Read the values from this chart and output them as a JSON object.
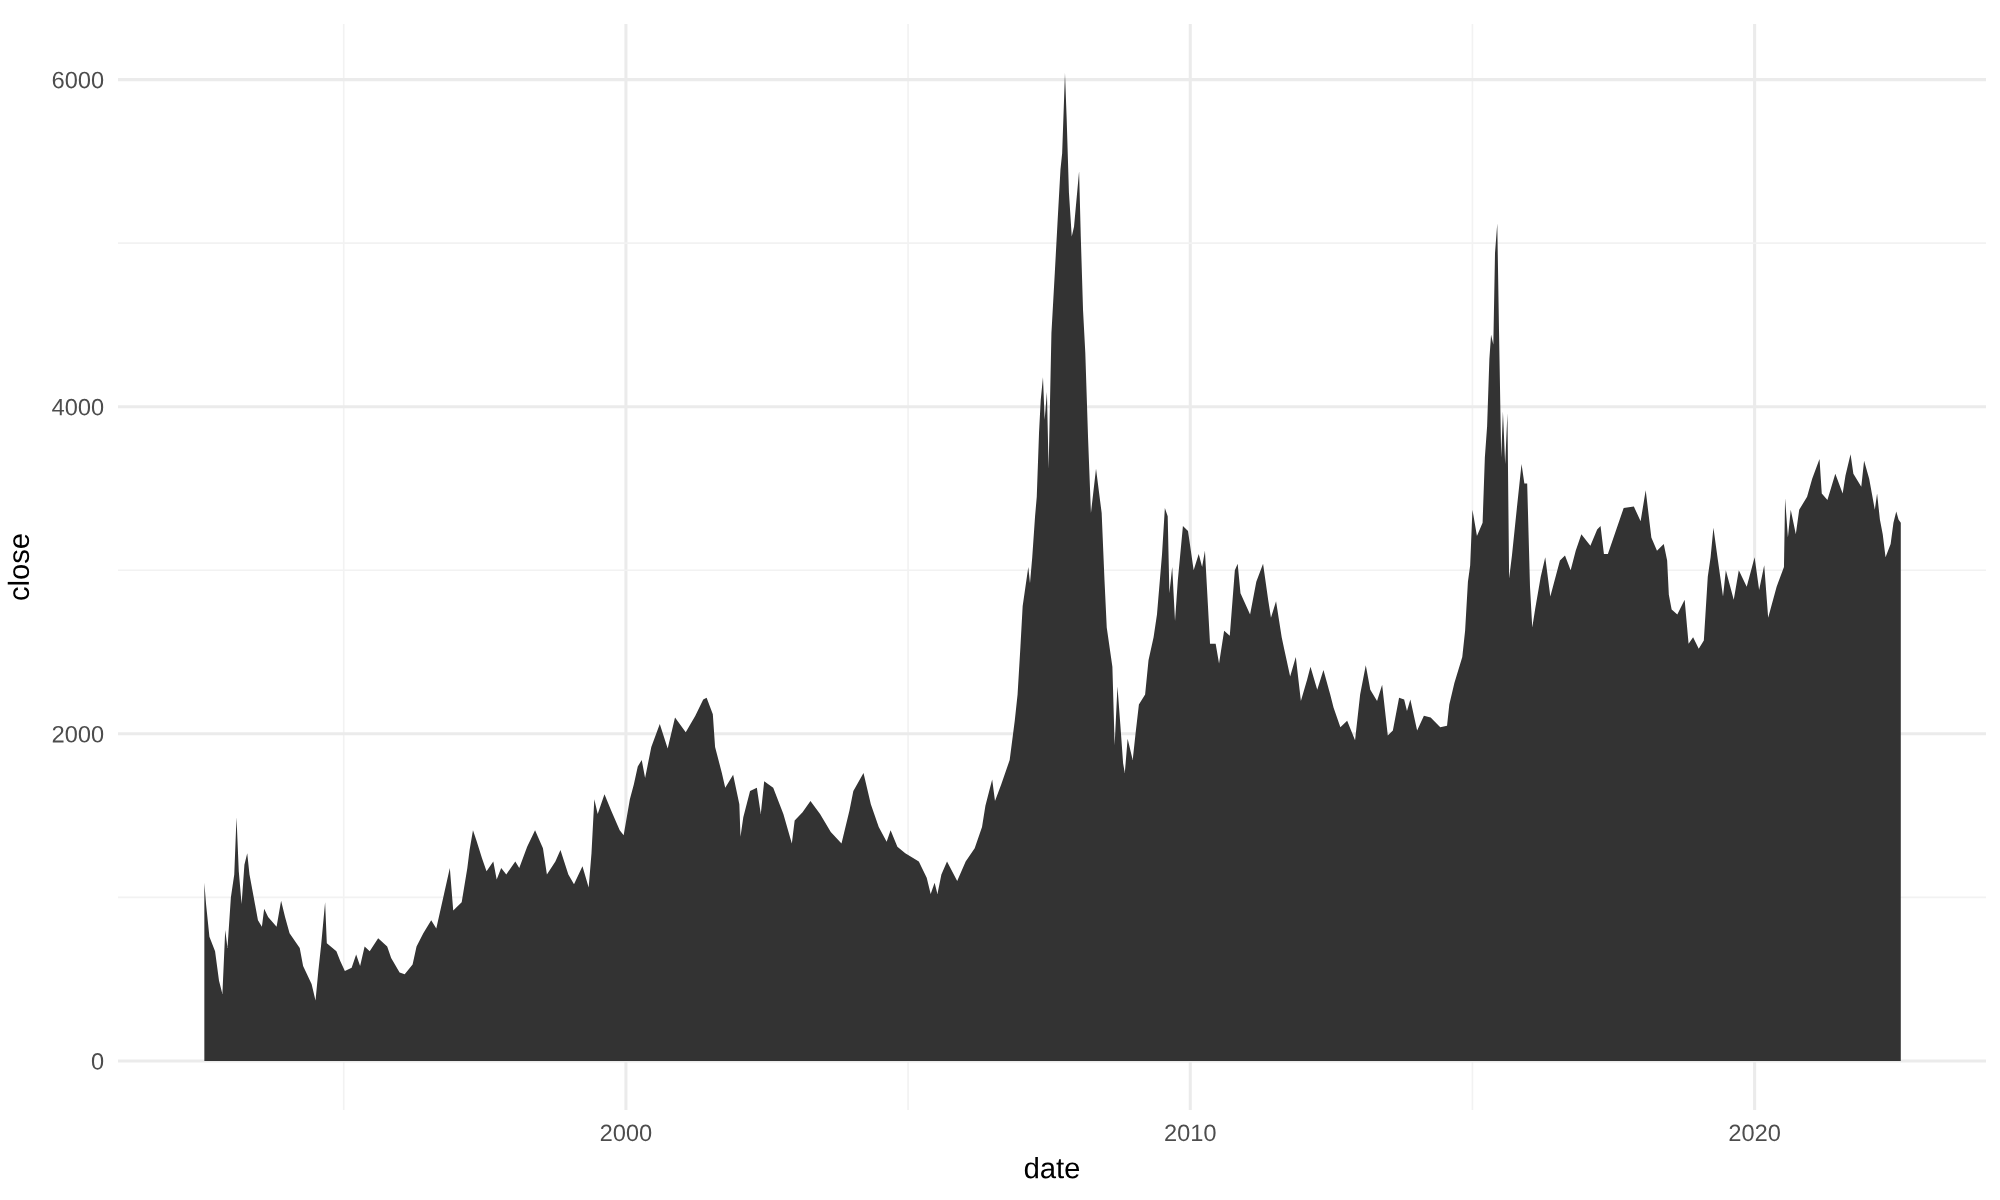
{
  "chart_data": {
    "type": "area",
    "xlabel": "date",
    "ylabel": "close",
    "color": "#333333",
    "x": [
      1992.53,
      1992.56,
      1992.62,
      1992.72,
      1992.79,
      1992.85,
      1992.9,
      1992.94,
      1993.0,
      1993.06,
      1993.1,
      1993.14,
      1993.19,
      1993.24,
      1993.29,
      1993.33,
      1993.4,
      1993.48,
      1993.55,
      1993.59,
      1993.66,
      1993.81,
      1993.89,
      1993.96,
      1994.04,
      1994.22,
      1994.28,
      1994.43,
      1994.5,
      1994.55,
      1994.6,
      1994.67,
      1994.7,
      1994.87,
      1994.94,
      1995.02,
      1995.14,
      1995.22,
      1995.29,
      1995.37,
      1995.46,
      1995.61,
      1995.77,
      1995.84,
      1995.99,
      1996.08,
      1996.22,
      1996.29,
      1996.41,
      1996.55,
      1996.64,
      1996.77,
      1996.88,
      1996.94,
      1997.09,
      1997.19,
      1997.23,
      1997.29,
      1997.35,
      1997.45,
      1997.53,
      1997.65,
      1997.71,
      1997.79,
      1997.88,
      1998.04,
      1998.11,
      1998.25,
      1998.39,
      1998.53,
      1998.6,
      1998.75,
      1998.84,
      1998.98,
      1999.08,
      1999.23,
      1999.34,
      1999.39,
      1999.44,
      1999.5,
      1999.62,
      1999.74,
      1999.89,
      1999.96,
      2000.07,
      2000.14,
      2000.21,
      2000.28,
      2000.34,
      2000.45,
      2000.6,
      2000.74,
      2000.87,
      2001.06,
      2001.23,
      2001.37,
      2001.43,
      2001.54,
      2001.58,
      2001.7,
      2001.76,
      2001.9,
      2002.01,
      2002.03,
      2002.08,
      2002.2,
      2002.32,
      2002.39,
      2002.45,
      2002.61,
      2002.79,
      2002.94,
      2002.99,
      2003.13,
      2003.27,
      2003.44,
      2003.63,
      2003.82,
      2003.96,
      2004.03,
      2004.21,
      2004.34,
      2004.48,
      2004.62,
      2004.69,
      2004.81,
      2004.95,
      2005.19,
      2005.33,
      2005.4,
      2005.47,
      2005.52,
      2005.59,
      2005.69,
      2005.87,
      2006.02,
      2006.18,
      2006.31,
      2006.37,
      2006.49,
      2006.54,
      2006.65,
      2006.8,
      2006.89,
      2006.94,
      2006.99,
      2007.03,
      2007.13,
      2007.16,
      2007.2,
      2007.25,
      2007.28,
      2007.32,
      2007.35,
      2007.39,
      2007.42,
      2007.46,
      2007.49,
      2007.54,
      2007.6,
      2007.65,
      2007.7,
      2007.73,
      2007.78,
      2007.81,
      2007.85,
      2007.9,
      2007.94,
      2008.03,
      2008.06,
      2008.1,
      2008.14,
      2008.19,
      2008.24,
      2008.33,
      2008.43,
      2008.48,
      2008.52,
      2008.62,
      2008.66,
      2008.71,
      2008.76,
      2008.81,
      2008.84,
      2008.89,
      2008.98,
      2009.03,
      2009.09,
      2009.2,
      2009.26,
      2009.35,
      2009.41,
      2009.5,
      2009.55,
      2009.6,
      2009.63,
      2009.68,
      2009.73,
      2009.78,
      2009.87,
      2009.96,
      2010.06,
      2010.15,
      2010.21,
      2010.26,
      2010.35,
      2010.45,
      2010.51,
      2010.6,
      2010.7,
      2010.79,
      2010.84,
      2010.89,
      2011.06,
      2011.17,
      2011.29,
      2011.38,
      2011.43,
      2011.52,
      2011.62,
      2011.67,
      2011.77,
      2011.87,
      2011.96,
      2012.07,
      2012.13,
      2012.25,
      2012.36,
      2012.48,
      2012.54,
      2012.66,
      2012.78,
      2012.92,
      2013.01,
      2013.11,
      2013.19,
      2013.31,
      2013.4,
      2013.5,
      2013.59,
      2013.7,
      2013.79,
      2013.84,
      2013.9,
      2014.02,
      2014.14,
      2014.26,
      2014.43,
      2014.55,
      2014.59,
      2014.68,
      2014.82,
      2014.87,
      2014.92,
      2014.96,
      2015.0,
      2015.08,
      2015.18,
      2015.22,
      2015.26,
      2015.3,
      2015.33,
      2015.37,
      2015.4,
      2015.44,
      2015.47,
      2015.51,
      2015.54,
      2015.58,
      2015.62,
      2015.65,
      2015.7,
      2015.79,
      2015.87,
      2015.92,
      2015.97,
      2016.02,
      2016.06,
      2016.11,
      2016.21,
      2016.29,
      2016.38,
      2016.55,
      2016.64,
      2016.74,
      2016.83,
      2016.93,
      2017.09,
      2017.21,
      2017.27,
      2017.33,
      2017.4,
      2017.54,
      2017.68,
      2017.86,
      2017.98,
      2018.07,
      2018.17,
      2018.27,
      2018.39,
      2018.45,
      2018.48,
      2018.53,
      2018.63,
      2018.76,
      2018.83,
      2018.91,
      2019.01,
      2019.1,
      2019.17,
      2019.22,
      2019.27,
      2019.35,
      2019.44,
      2019.49,
      2019.63,
      2019.72,
      2019.86,
      2020.0,
      2020.08,
      2020.17,
      2020.24,
      2020.39,
      2020.52,
      2020.54,
      2020.59,
      2020.64,
      2020.73,
      2020.79,
      2020.93,
      2021.02,
      2021.15,
      2021.19,
      2021.29,
      2021.43,
      2021.56,
      2021.61,
      2021.7,
      2021.75,
      2021.89,
      2021.94,
      2022.03,
      2022.13,
      2022.17,
      2022.22,
      2022.27,
      2022.32,
      2022.41,
      2022.46,
      2022.51,
      2022.55,
      2022.59
    ],
    "values": [
      1090,
      960,
      760,
      670,
      490,
      410,
      800,
      690,
      1000,
      1140,
      1490,
      1160,
      960,
      1200,
      1270,
      1140,
      1010,
      860,
      820,
      930,
      880,
      820,
      980,
      880,
      780,
      690,
      580,
      470,
      370,
      550,
      710,
      970,
      720,
      670,
      610,
      550,
      570,
      650,
      580,
      700,
      670,
      750,
      700,
      630,
      540,
      530,
      590,
      700,
      780,
      860,
      810,
      1010,
      1180,
      920,
      970,
      1180,
      1290,
      1410,
      1350,
      1240,
      1160,
      1220,
      1110,
      1180,
      1140,
      1220,
      1180,
      1310,
      1410,
      1300,
      1140,
      1220,
      1290,
      1140,
      1080,
      1190,
      1060,
      1270,
      1600,
      1510,
      1630,
      1530,
      1410,
      1380,
      1600,
      1690,
      1800,
      1840,
      1730,
      1920,
      2060,
      1910,
      2100,
      2010,
      2110,
      2210,
      2220,
      2120,
      1920,
      1760,
      1670,
      1750,
      1570,
      1370,
      1490,
      1650,
      1670,
      1510,
      1710,
      1670,
      1510,
      1330,
      1470,
      1520,
      1590,
      1510,
      1400,
      1330,
      1530,
      1650,
      1760,
      1570,
      1430,
      1340,
      1410,
      1310,
      1270,
      1220,
      1120,
      1020,
      1090,
      1020,
      1140,
      1220,
      1100,
      1220,
      1300,
      1430,
      1560,
      1720,
      1590,
      1690,
      1840,
      2080,
      2240,
      2530,
      2780,
      3020,
      2920,
      3080,
      3330,
      3450,
      3840,
      4040,
      4180,
      3920,
      4090,
      3620,
      4450,
      4820,
      5140,
      5450,
      5550,
      6040,
      5760,
      5310,
      5040,
      5100,
      5440,
      5040,
      4590,
      4330,
      3800,
      3350,
      3620,
      3350,
      2940,
      2650,
      2410,
      1930,
      2290,
      2060,
      1820,
      1760,
      1970,
      1840,
      2000,
      2180,
      2240,
      2450,
      2590,
      2730,
      3100,
      3380,
      3330,
      2860,
      3020,
      2690,
      2940,
      3270,
      3240,
      3000,
      3100,
      3020,
      3120,
      2550,
      2550,
      2430,
      2630,
      2600,
      3000,
      3040,
      2860,
      2730,
      2930,
      3040,
      2820,
      2710,
      2810,
      2590,
      2510,
      2350,
      2470,
      2200,
      2330,
      2410,
      2270,
      2390,
      2240,
      2160,
      2040,
      2080,
      1960,
      2240,
      2420,
      2270,
      2200,
      2300,
      1990,
      2020,
      2220,
      2210,
      2140,
      2210,
      2020,
      2110,
      2100,
      2040,
      2050,
      2180,
      2310,
      2470,
      2630,
      2930,
      3030,
      3370,
      3210,
      3290,
      3690,
      3880,
      4290,
      4440,
      4380,
      4940,
      5120,
      4480,
      3690,
      3970,
      3650,
      3960,
      2950,
      3090,
      3390,
      3650,
      3530,
      3530,
      2900,
      2650,
      2760,
      2960,
      3080,
      2840,
      3060,
      3090,
      3000,
      3120,
      3220,
      3150,
      3250,
      3270,
      3100,
      3100,
      3240,
      3380,
      3390,
      3300,
      3490,
      3200,
      3120,
      3160,
      3060,
      2850,
      2760,
      2730,
      2820,
      2550,
      2590,
      2520,
      2570,
      2960,
      3080,
      3260,
      3060,
      2840,
      3000,
      2820,
      3000,
      2900,
      3080,
      2880,
      3030,
      2710,
      2900,
      3020,
      3440,
      3200,
      3370,
      3220,
      3370,
      3450,
      3560,
      3680,
      3470,
      3430,
      3590,
      3470,
      3580,
      3710,
      3590,
      3510,
      3670,
      3560,
      3370,
      3470,
      3310,
      3220,
      3080,
      3160,
      3290,
      3360,
      3310,
      3290
    ],
    "xlim": [
      1991.0,
      2024.1
    ],
    "ylim": [
      -300,
      6340
    ],
    "xticks": [
      {
        "value": 1995,
        "label": null
      },
      2000,
      {
        "value": 2005,
        "label": null
      },
      2010,
      {
        "value": 2015,
        "label": null
      },
      2020
    ],
    "yticks": [
      0,
      {
        "value": 1000,
        "label": null
      },
      2000,
      {
        "value": 3000,
        "label": null
      },
      4000,
      {
        "value": 5000,
        "label": null
      },
      6000
    ],
    "grid": true
  }
}
